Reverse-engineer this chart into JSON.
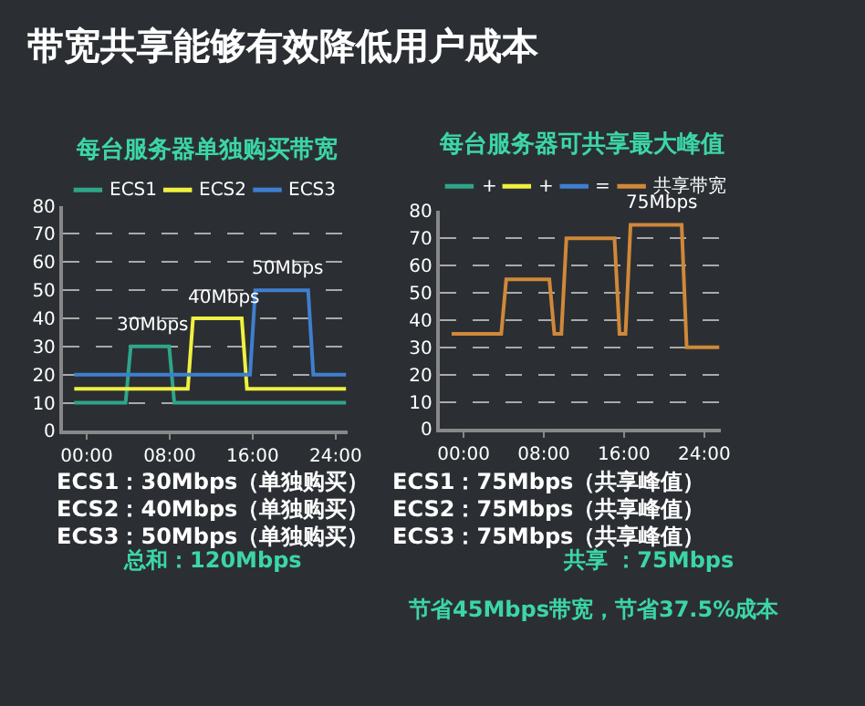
{
  "chart_data": [
    {
      "type": "line",
      "title": "每台服务器单独购买带宽",
      "xlim": [
        -2.3,
        25.2
      ],
      "xticks": [
        {
          "value": 0,
          "label": "00:00"
        },
        {
          "value": 8,
          "label": "08:00"
        },
        {
          "value": 16,
          "label": "16:00"
        },
        {
          "value": 24,
          "label": "24:00"
        }
      ],
      "ylim": [
        0,
        80
      ],
      "yticks": [
        0,
        10,
        20,
        30,
        40,
        50,
        60,
        70,
        80
      ],
      "grid": "y",
      "legend": "top",
      "series": [
        {
          "name": "ECS1",
          "color": "#2ea58a",
          "x": [
            -1.2,
            3.75,
            4.25,
            7.95,
            8.45,
            25
          ],
          "values": [
            10,
            10,
            30,
            30,
            10,
            10
          ]
        },
        {
          "name": "ECS2",
          "color": "#f0f040",
          "x": [
            -1.2,
            9.75,
            10.25,
            14.95,
            15.45,
            25
          ],
          "values": [
            15,
            15,
            40,
            40,
            15,
            15
          ]
        },
        {
          "name": "ECS3",
          "color": "#3f7fd0",
          "x": [
            -1.2,
            15.75,
            16.25,
            21.35,
            21.85,
            25
          ],
          "values": [
            20,
            20,
            50,
            50,
            20,
            20
          ]
        }
      ],
      "annotations": [
        {
          "text": "30Mbps",
          "x": 6.3,
          "y": 30
        },
        {
          "text": "40Mbps",
          "x": 13.2,
          "y": 40
        },
        {
          "text": "50Mbps",
          "x": 19.4,
          "y": 50
        },
        "带宽共享能够有效降低用户成本",
        "ECS1：30Mbps（单独购买）",
        "ECS2：40Mbps（单独购买）",
        "ECS3：50Mbps（单独购买）",
        "总和：120Mbps"
      ]
    },
    {
      "type": "line",
      "title": "每台服务器可共享最大峰值",
      "xlim": [
        -2.4,
        25.7
      ],
      "xticks": [
        {
          "value": 0,
          "label": "00:00"
        },
        {
          "value": 8,
          "label": "08:00"
        },
        {
          "value": 16,
          "label": "16:00"
        },
        {
          "value": 24,
          "label": "24:00"
        }
      ],
      "ylim": [
        0,
        80
      ],
      "yticks": [
        0,
        10,
        20,
        30,
        40,
        50,
        60,
        70,
        80
      ],
      "grid": "y",
      "legend": "top",
      "series": [
        {
          "name": "+",
          "color": "#2ea58a"
        },
        {
          "name": "+",
          "color": "#f0f040"
        },
        {
          "name": "=",
          "color": "#3f7fd0"
        },
        {
          "name": "共享带宽",
          "color": "#d0883a",
          "x": [
            -1.2,
            3.75,
            4.25,
            8.55,
            9.05,
            9.75,
            10.25,
            15.05,
            15.55,
            16.15,
            16.65,
            21.75,
            22.25,
            25.5
          ],
          "values": [
            35,
            35,
            55,
            55,
            35,
            35,
            70,
            70,
            35,
            35,
            75,
            75,
            30,
            30
          ]
        }
      ],
      "annotations": [
        {
          "text": "75Mbps",
          "x": 19.8,
          "y": 75
        },
        "ECS1：75Mbps（共享峰值）",
        "ECS2：75Mbps（共享峰值）",
        "ECS3：75Mbps（共享峰值）",
        "共享 ：75Mbps",
        "节省45Mbps带宽，节省37.5%成本"
      ]
    }
  ]
}
